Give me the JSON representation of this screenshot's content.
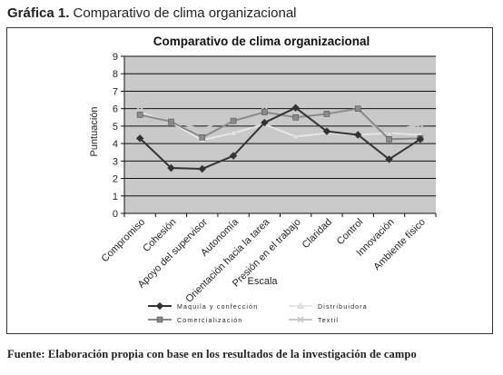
{
  "caption": {
    "label": "Gráfica 1.",
    "text": "Comparativo de clima organizacional"
  },
  "source": "Fuente: Elaboración propia con base en los resultados de la investigación de campo",
  "chart_data": {
    "type": "line",
    "title": "Comparativo de clima organizacional",
    "xlabel": "Escala",
    "ylabel": "Puntuación",
    "ylim": [
      0,
      9
    ],
    "yticks": [
      0,
      1,
      2,
      3,
      4,
      5,
      6,
      7,
      8,
      9
    ],
    "grid": true,
    "legend_position": "bottom",
    "categories": [
      "Compromiso",
      "Cohesión",
      "Apoyo del supervisor",
      "Autonomía",
      "Orientación hacia la tarea",
      "Presión en el trabajo",
      "Claridad",
      "Control",
      "Innovación",
      "Ambiente físico"
    ],
    "series": [
      {
        "name": "Maquila y confección",
        "color": "#333333",
        "marker": "diamond",
        "values": [
          4.3,
          2.6,
          2.55,
          3.3,
          5.2,
          6.05,
          4.7,
          4.5,
          3.1,
          4.25
        ]
      },
      {
        "name": "Distribuidora",
        "color": "#e6e6e6",
        "marker": "triangle",
        "values": [
          5.8,
          5.2,
          4.2,
          4.6,
          5.1,
          4.4,
          4.6,
          4.5,
          4.6,
          4.5
        ]
      },
      {
        "name": "Comercialización",
        "color": "#8a8a8a",
        "marker": "square",
        "values": [
          5.65,
          5.25,
          4.35,
          5.3,
          5.8,
          5.5,
          5.7,
          6.0,
          4.25,
          4.3
        ]
      },
      {
        "name": "Textil",
        "color": "#c8c8c8",
        "marker": "x",
        "values": [
          5.9,
          5.3,
          4.8,
          5.6,
          5.9,
          5.35,
          5.8,
          5.35,
          4.7,
          5.1
        ]
      }
    ]
  }
}
